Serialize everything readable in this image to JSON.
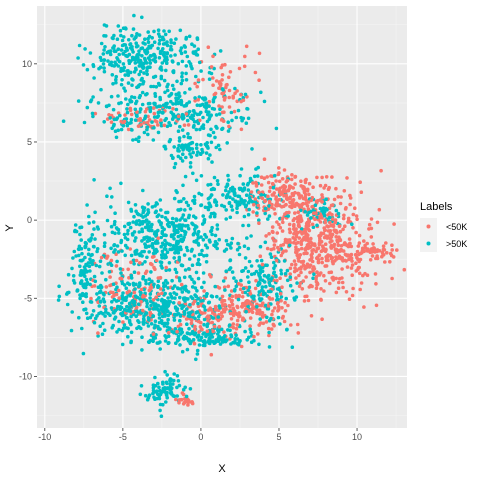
{
  "chart_data": {
    "type": "scatter",
    "title": "",
    "xlabel": "X",
    "ylabel": "Y",
    "xlim": [
      -10.5,
      13.2
    ],
    "ylim": [
      -13.3,
      13.7
    ],
    "x_ticks": [
      -10,
      -5,
      0,
      5,
      10
    ],
    "y_ticks": [
      -10,
      -5,
      0,
      5,
      10
    ],
    "grid": true,
    "legend": {
      "title": "Labels",
      "placement": "right",
      "entries": [
        "<50K",
        ">50K"
      ]
    },
    "series": [
      {
        "name": "<50K",
        "color": "#F8766D",
        "clusters": [
          {
            "cx": 7.5,
            "cy": -1.5,
            "rx": 3.5,
            "ry": 3.5,
            "n": 520
          },
          {
            "cx": 5.5,
            "cy": 1.5,
            "rx": 2.5,
            "ry": 1.5,
            "n": 160
          },
          {
            "cx": 11.0,
            "cy": -2.0,
            "rx": 1.5,
            "ry": 0.6,
            "n": 50
          },
          {
            "cx": 3.0,
            "cy": -5.5,
            "rx": 3.0,
            "ry": 1.5,
            "n": 160
          },
          {
            "cx": -4.0,
            "cy": -4.5,
            "rx": 3.0,
            "ry": 2.5,
            "n": 120
          },
          {
            "cx": 1.5,
            "cy": 8.5,
            "rx": 2.0,
            "ry": 2.5,
            "n": 70
          },
          {
            "cx": -3.5,
            "cy": 6.5,
            "rx": 3.0,
            "ry": 1.0,
            "n": 50
          },
          {
            "cx": -1.0,
            "cy": -11.5,
            "rx": 0.8,
            "ry": 0.4,
            "n": 20
          },
          {
            "cx": 0.5,
            "cy": -6.5,
            "rx": 3.0,
            "ry": 1.5,
            "n": 80
          }
        ]
      },
      {
        "name": ">50K",
        "color": "#00BFC4",
        "clusters": [
          {
            "cx": -3.5,
            "cy": 10.5,
            "rx": 3.5,
            "ry": 1.8,
            "n": 300
          },
          {
            "cx": -2.0,
            "cy": 7.0,
            "rx": 5.0,
            "ry": 1.8,
            "n": 300
          },
          {
            "cx": -0.5,
            "cy": 4.5,
            "rx": 2.0,
            "ry": 1.0,
            "n": 70
          },
          {
            "cx": -2.5,
            "cy": -1.0,
            "rx": 4.5,
            "ry": 2.5,
            "n": 420
          },
          {
            "cx": -3.0,
            "cy": -5.5,
            "rx": 4.5,
            "ry": 2.0,
            "n": 450
          },
          {
            "cx": 2.5,
            "cy": 1.5,
            "rx": 3.0,
            "ry": 1.5,
            "n": 150
          },
          {
            "cx": 4.0,
            "cy": -4.0,
            "rx": 2.5,
            "ry": 2.5,
            "n": 150
          },
          {
            "cx": -2.2,
            "cy": -11.0,
            "rx": 1.2,
            "ry": 1.0,
            "n": 80
          },
          {
            "cx": 7.5,
            "cy": 0.5,
            "rx": 1.5,
            "ry": 1.0,
            "n": 50
          },
          {
            "cx": -7.5,
            "cy": -3.0,
            "rx": 0.8,
            "ry": 3.0,
            "n": 100
          },
          {
            "cx": 0.0,
            "cy": -7.5,
            "rx": 4.0,
            "ry": 0.8,
            "n": 150
          }
        ]
      }
    ]
  }
}
